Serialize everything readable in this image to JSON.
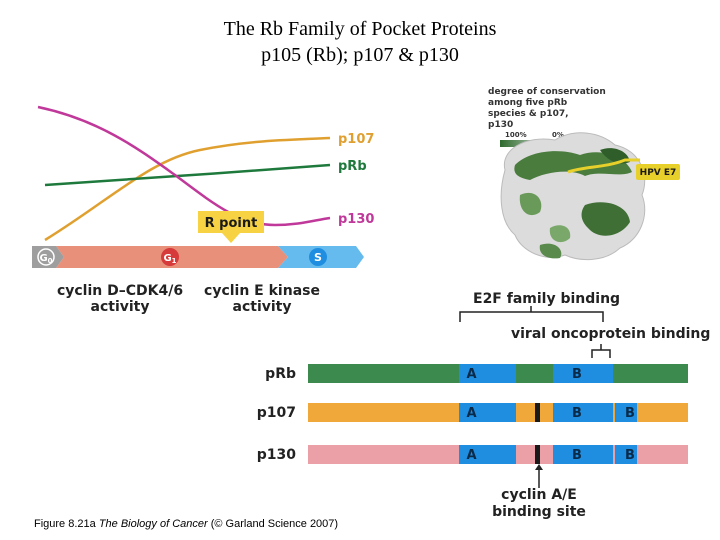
{
  "title": {
    "line1": "The Rb Family of Pocket Proteins",
    "line2": "p105 (Rb); p107 & p130"
  },
  "cell_cycle": {
    "curves": [
      {
        "name": "p107",
        "color": "#e0a030"
      },
      {
        "name": "pRb",
        "color": "#1e7a3c"
      },
      {
        "name": "p130",
        "color": "#c0399a"
      }
    ],
    "r_point": "R point",
    "phases": [
      {
        "label": "G",
        "sub": "0",
        "color": "#9e9e9e"
      },
      {
        "label": "G",
        "sub": "1",
        "color": "#e8907a"
      },
      {
        "label": "S",
        "sub": "",
        "color": "#66bbee"
      }
    ],
    "activity_left": [
      "cyclin D–CDK4/6",
      "activity"
    ],
    "activity_right": [
      "cyclin E kinase",
      "activity"
    ]
  },
  "structure": {
    "legend_lines": [
      "degree of conservation",
      "among five pRb",
      "species & p107,",
      "p130"
    ],
    "scale_high": "100%",
    "scale_low": "0%",
    "hpv_label": "HPV E7"
  },
  "domains": {
    "e2f_binding": "E2F family binding",
    "viral_binding": "viral oncoprotein binding",
    "rows": [
      {
        "name": "pRb",
        "color": "#3d8a4f",
        "blocks": [
          "A",
          "B"
        ],
        "has_marker": false,
        "extra_b": false
      },
      {
        "name": "p107",
        "color": "#f0a83a",
        "blocks": [
          "A",
          "B",
          "B"
        ],
        "has_marker": true,
        "extra_b": true
      },
      {
        "name": "p130",
        "color": "#eba0a8",
        "blocks": [
          "A",
          "B",
          "B"
        ],
        "has_marker": true,
        "extra_b": true
      }
    ],
    "block_color": "#1f8ee0",
    "cyclin_site": [
      "cyclin A/E",
      "binding site"
    ]
  },
  "caption": {
    "prefix": "Figure 8.21a",
    "book": "The Biology of Cancer",
    "suffix": "(© Garland Science 2007)"
  }
}
